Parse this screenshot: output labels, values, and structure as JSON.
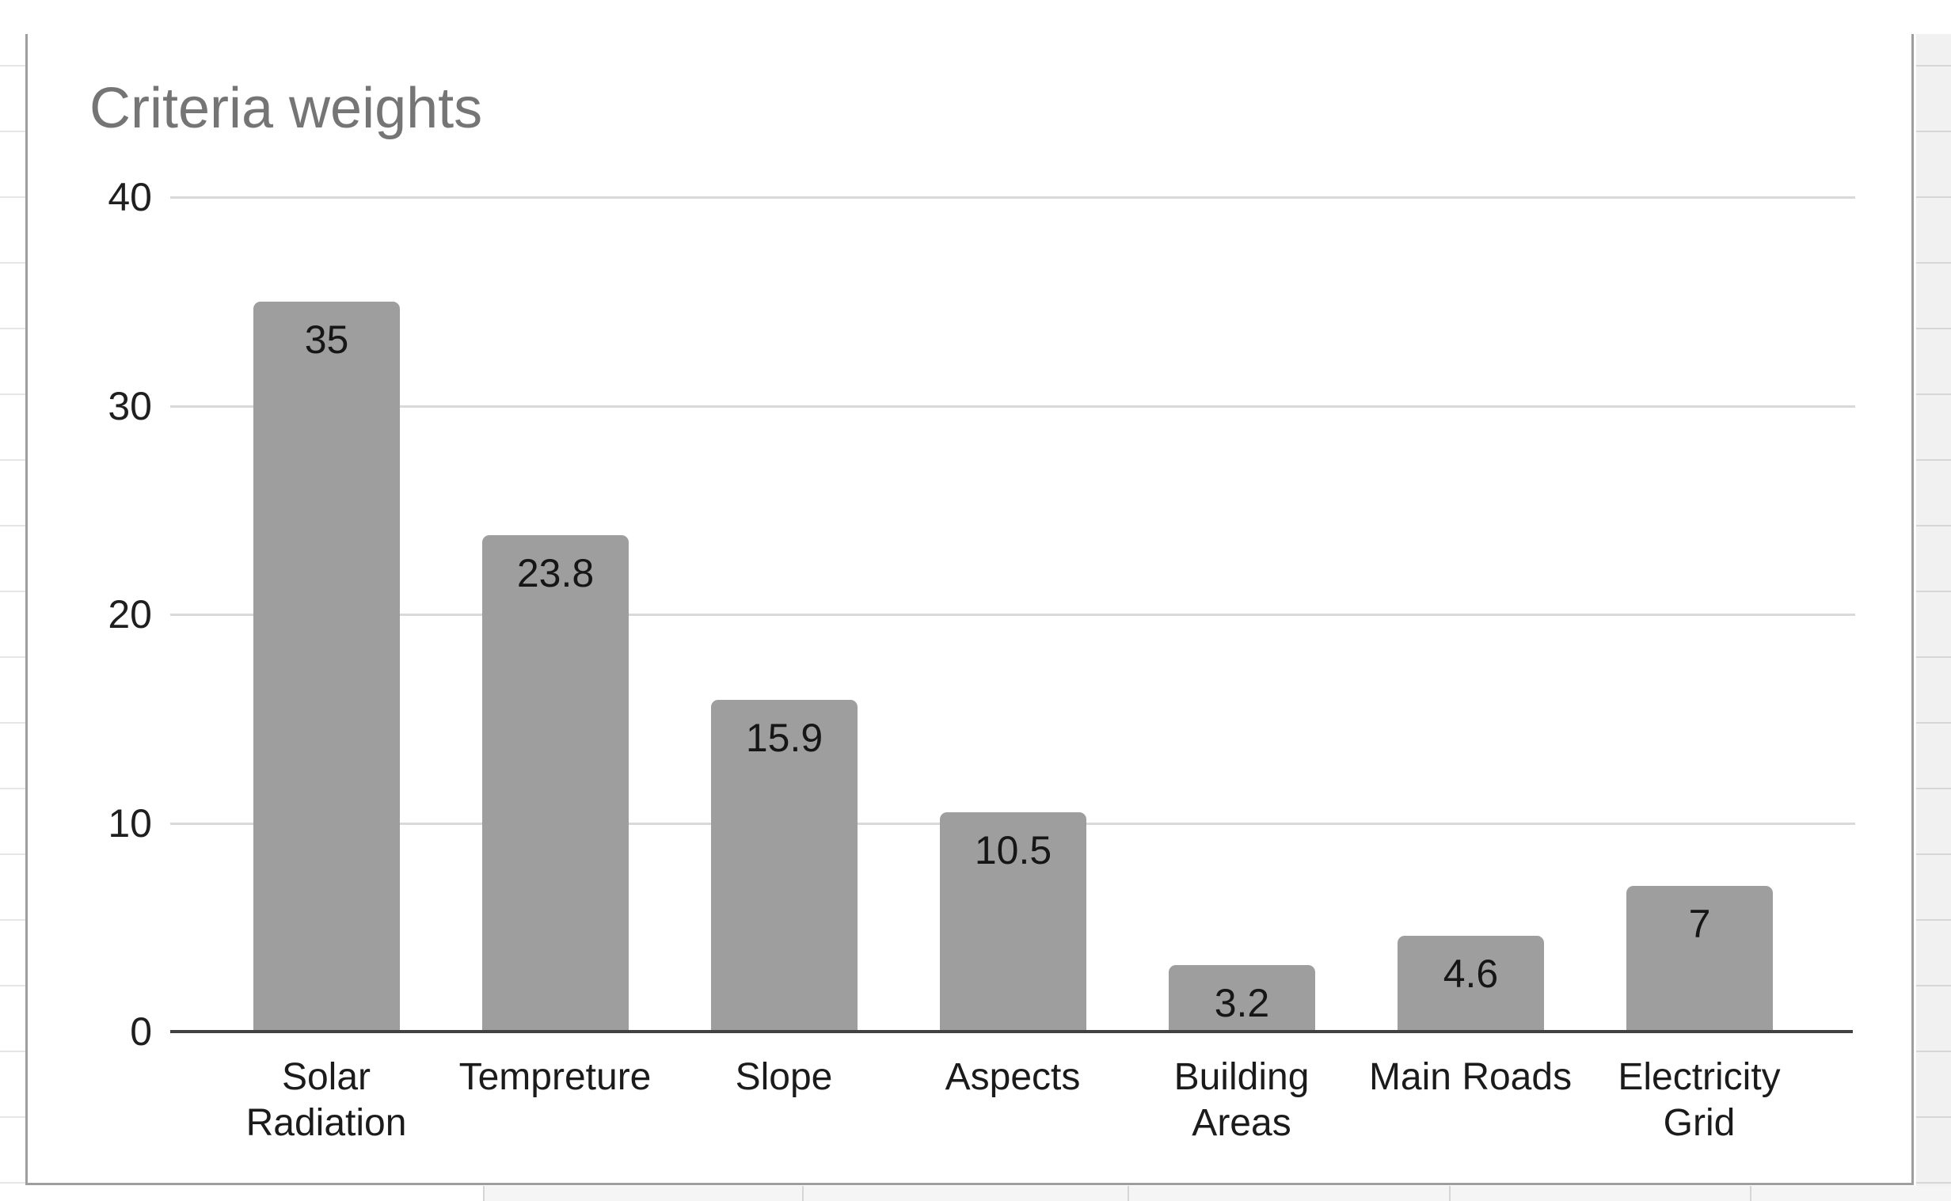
{
  "sheet": {
    "left_strip_line_color": "#e6e6e6",
    "right_strip_bg": "#f1f1f1",
    "right_strip_line_color": "#d6d6d6",
    "bottom_strip_bg": "#f5f5f5",
    "bottom_strip_line_color": "#d6d6d6"
  },
  "chart": {
    "frame_border_color": "#9e9e9e",
    "background": "#ffffff"
  },
  "chart_data": {
    "type": "bar",
    "title": "Criteria weights",
    "categories": [
      "Solar Radiation",
      "Tempreture",
      "Slope",
      "Aspects",
      "Building Areas",
      "Main Roads",
      "Electricity Grid"
    ],
    "category_lines": [
      [
        "Solar",
        "Radiation"
      ],
      [
        "Tempreture"
      ],
      [
        "Slope"
      ],
      [
        "Aspects"
      ],
      [
        "Building",
        "Areas"
      ],
      [
        "Main Roads"
      ],
      [
        "Electricity",
        "Grid"
      ]
    ],
    "values": [
      35,
      23.8,
      15.9,
      10.5,
      3.2,
      4.6,
      7
    ],
    "value_labels": [
      "35",
      "23.8",
      "15.9",
      "10.5",
      "3.2",
      "4.6",
      "7"
    ],
    "xlabel": "",
    "ylabel": "",
    "ylim": [
      0,
      40
    ],
    "yticks": [
      40,
      30,
      20,
      10,
      0
    ],
    "grid": true,
    "legend": "none",
    "bar_color": "#9e9e9e",
    "axis_line_color": "#424242",
    "gridline_color": "#d9d9d9",
    "title_color": "#757575",
    "tick_label_color": "#1f1f1f",
    "data_label_color": "#161616",
    "category_label_color": "#1b1b1b"
  }
}
